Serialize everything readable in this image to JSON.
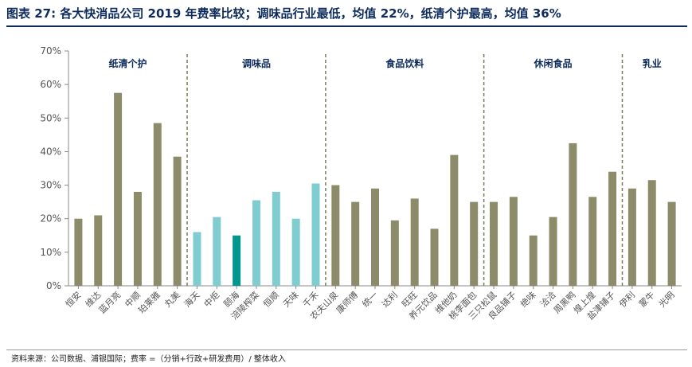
{
  "header": {
    "title": "图表 27: 各大快消品公司 2019 年费率比较；调味品行业最低，均值 22%，纸清个护最高，均值 36%"
  },
  "footer": {
    "source": "资料来源：公司数据、浦银国际；费率 =（分销+行政+研发费用）/ 整体收入"
  },
  "chart_data": {
    "type": "bar",
    "title": "",
    "xlabel": "",
    "ylabel": "",
    "ylim": [
      0,
      0.7
    ],
    "yticks": [
      "0%",
      "10%",
      "20%",
      "30%",
      "40%",
      "50%",
      "60%",
      "70%"
    ],
    "grid": false,
    "legend": "none",
    "groups": [
      {
        "label": "纸清个护",
        "categories": [
          "恒安",
          "维达",
          "蓝月亮",
          "中顺",
          "珀莱雅",
          "丸美"
        ]
      },
      {
        "label": "调味品",
        "categories": [
          "海天",
          "中炬",
          "颐海",
          "涪陵榨菜",
          "恒顺",
          "天味",
          "千禾"
        ]
      },
      {
        "label": "食品饮料",
        "categories": [
          "农夫山泉",
          "康师傅",
          "统一",
          "达利",
          "旺旺",
          "养元饮品",
          "维他奶",
          "桃李面包"
        ]
      },
      {
        "label": "休闲食品",
        "categories": [
          "三只松鼠",
          "良品铺子",
          "绝味",
          "洽洽",
          "周黑鸭",
          "煌上煌",
          "盐津铺子"
        ]
      },
      {
        "label": "乳业",
        "categories": [
          "伊利",
          "蒙牛",
          "光明"
        ]
      }
    ],
    "categories": [
      "恒安",
      "维达",
      "蓝月亮",
      "中顺",
      "珀莱雅",
      "丸美",
      "海天",
      "中炬",
      "颐海",
      "涪陵榨菜",
      "恒顺",
      "天味",
      "千禾",
      "农夫山泉",
      "康师傅",
      "统一",
      "达利",
      "旺旺",
      "养元饮品",
      "维他奶",
      "桃李面包",
      "三只松鼠",
      "良品铺子",
      "绝味",
      "洽洽",
      "周黑鸭",
      "煌上煌",
      "盐津铺子",
      "伊利",
      "蒙牛",
      "光明"
    ],
    "values": [
      0.2,
      0.21,
      0.575,
      0.28,
      0.485,
      0.385,
      0.16,
      0.205,
      0.15,
      0.255,
      0.28,
      0.2,
      0.305,
      0.3,
      0.25,
      0.29,
      0.195,
      0.26,
      0.17,
      0.39,
      0.25,
      0.25,
      0.265,
      0.15,
      0.205,
      0.425,
      0.265,
      0.34,
      0.29,
      0.315,
      0.25
    ],
    "colors": {
      "default": "#8c8c6a",
      "condiment": "#7fcdd0",
      "highlight": "#00978f",
      "group_divider": "#7a7a5a",
      "axis": "#8a8a8a"
    },
    "bar_color_keys": [
      "default",
      "default",
      "default",
      "default",
      "default",
      "default",
      "condiment",
      "condiment",
      "highlight",
      "condiment",
      "condiment",
      "condiment",
      "condiment",
      "default",
      "default",
      "default",
      "default",
      "default",
      "default",
      "default",
      "default",
      "default",
      "default",
      "default",
      "default",
      "default",
      "default",
      "default",
      "default",
      "default",
      "default"
    ]
  }
}
